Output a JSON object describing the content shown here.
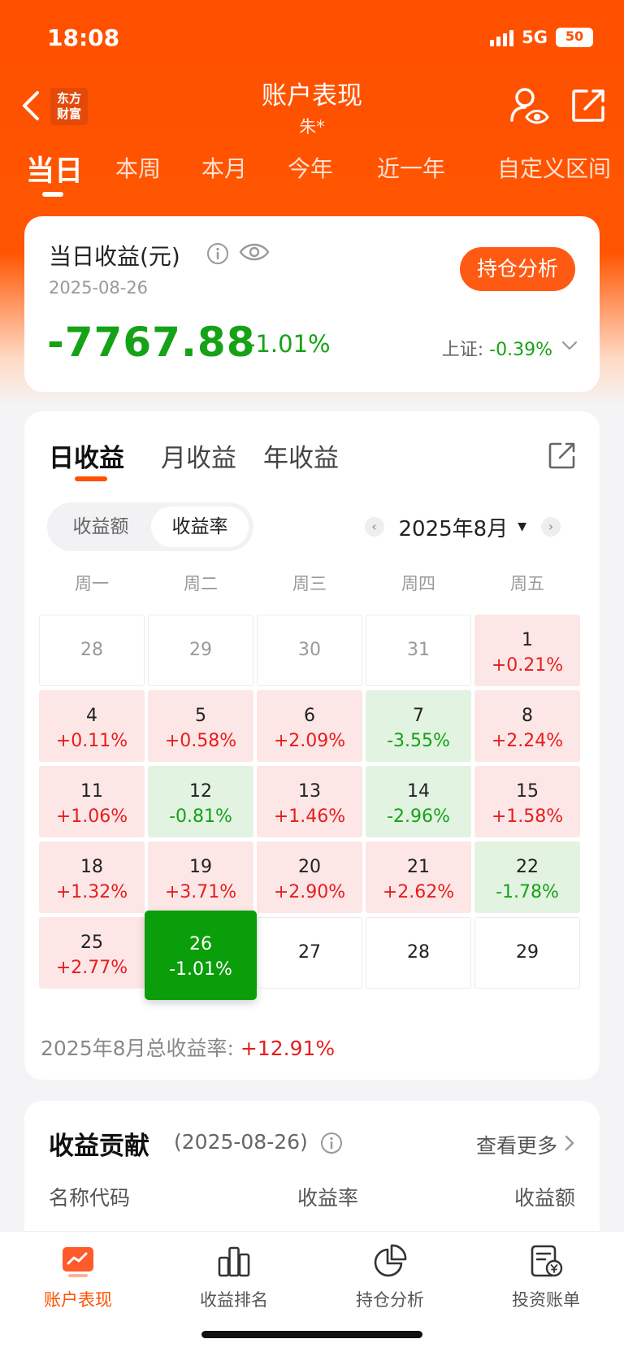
{
  "status": {
    "time": "18:08",
    "network": "5G",
    "battery": "50"
  },
  "header": {
    "logo_line1": "东方",
    "logo_line2": "财富",
    "title": "账户表现",
    "subtitle": "朱*"
  },
  "period_tabs": [
    "当日",
    "本周",
    "本月",
    "今年",
    "近一年",
    "自定义区间"
  ],
  "summary": {
    "label": "当日收益(元)",
    "date": "2025-08-26",
    "amount": "-7767.88",
    "percent": "-1.01%",
    "index_label": "上证:",
    "index_value": "-0.39%",
    "holding_button": "持仓分析"
  },
  "returns_tabs": [
    "日收益",
    "月收益",
    "年收益"
  ],
  "toggle": {
    "amount": "收益额",
    "rate": "收益率"
  },
  "month_nav": {
    "label": "2025年8月",
    "prev": "‹",
    "next": "›"
  },
  "weekdays": [
    "周一",
    "周二",
    "周三",
    "周四",
    "周五"
  ],
  "calendar_rows": [
    [
      {
        "day": "28",
        "value": "",
        "state": "prev"
      },
      {
        "day": "29",
        "value": "",
        "state": "prev"
      },
      {
        "day": "30",
        "value": "",
        "state": "prev"
      },
      {
        "day": "31",
        "value": "",
        "state": "prev"
      },
      {
        "day": "1",
        "value": "+0.21%",
        "state": "up"
      }
    ],
    [
      {
        "day": "4",
        "value": "+0.11%",
        "state": "up"
      },
      {
        "day": "5",
        "value": "+0.58%",
        "state": "up"
      },
      {
        "day": "6",
        "value": "+2.09%",
        "state": "up"
      },
      {
        "day": "7",
        "value": "-3.55%",
        "state": "down"
      },
      {
        "day": "8",
        "value": "+2.24%",
        "state": "up"
      }
    ],
    [
      {
        "day": "11",
        "value": "+1.06%",
        "state": "up"
      },
      {
        "day": "12",
        "value": "-0.81%",
        "state": "down"
      },
      {
        "day": "13",
        "value": "+1.46%",
        "state": "up"
      },
      {
        "day": "14",
        "value": "-2.96%",
        "state": "down"
      },
      {
        "day": "15",
        "value": "+1.58%",
        "state": "up"
      }
    ],
    [
      {
        "day": "18",
        "value": "+1.32%",
        "state": "up"
      },
      {
        "day": "19",
        "value": "+3.71%",
        "state": "up"
      },
      {
        "day": "20",
        "value": "+2.90%",
        "state": "up"
      },
      {
        "day": "21",
        "value": "+2.62%",
        "state": "up"
      },
      {
        "day": "22",
        "value": "-1.78%",
        "state": "down"
      }
    ],
    [
      {
        "day": "25",
        "value": "+2.77%",
        "state": "up"
      },
      {
        "day": "26",
        "value": "-1.01%",
        "state": "selected"
      },
      {
        "day": "27",
        "value": "",
        "state": "future"
      },
      {
        "day": "28",
        "value": "",
        "state": "future"
      },
      {
        "day": "29",
        "value": "",
        "state": "future"
      }
    ]
  ],
  "month_total": {
    "label": "2025年8月总收益率:",
    "value": "+12.91%"
  },
  "contribution": {
    "title": "收益贡献",
    "date": "(2025-08-26)",
    "more": "查看更多",
    "columns": [
      "名称代码",
      "收益率",
      "收益额"
    ]
  },
  "bottom_nav": [
    {
      "label": "账户表现",
      "icon": "account-performance-icon",
      "active": true
    },
    {
      "label": "收益排名",
      "icon": "ranking-bar-icon",
      "active": false
    },
    {
      "label": "持仓分析",
      "icon": "pie-chart-icon",
      "active": false
    },
    {
      "label": "投资账单",
      "icon": "bill-icon",
      "active": false
    }
  ],
  "colors": {
    "brand": "#ff5000",
    "up": "#e61e1e",
    "down": "#16a216",
    "selected": "#0a9e0a"
  }
}
